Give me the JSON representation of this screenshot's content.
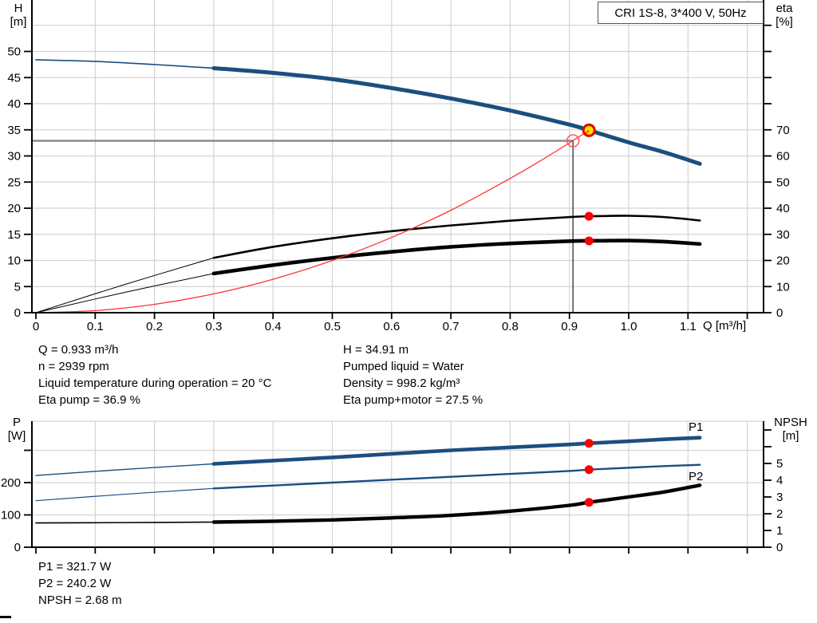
{
  "title_box": {
    "label": "CRI 1S-8, 3*400 V, 50Hz"
  },
  "info_top": {
    "left": [
      "Q = 0.933 m³/h",
      "n = 2939 rpm",
      "Liquid temperature during operation = 20 °C",
      "Eta pump = 36.9 %"
    ],
    "right": [
      "H = 34.91 m",
      "Pumped liquid = Water",
      "Density = 998.2 kg/m³",
      "Eta pump+motor = 27.5 %"
    ]
  },
  "info_bottom": [
    "P1 = 321.7 W",
    "P2 = 240.2 W",
    "NPSH = 2.68 m"
  ],
  "colors": {
    "curve_blue": "#1c4e80",
    "curve_label_blue": "#2e66ad",
    "red": "#ff0000",
    "system_red": "#ff3333",
    "yellow": "#ffe400",
    "grid": "#d4d4d4",
    "crosshair_h": "#8a8a8a",
    "crosshair_v": "#3c3c3c",
    "axis": "#000000"
  },
  "chart_data": [
    {
      "name": "hq-eta-chart",
      "type": "line",
      "title": "CRI 1S-8, 3*400 V, 50Hz",
      "xlabel": "Q [m³/h]",
      "ylabel_left": [
        "H",
        "[m]"
      ],
      "ylabel_right": [
        "eta",
        "[%]"
      ],
      "xlim": [
        0,
        1.23
      ],
      "ylim_left": [
        0,
        60
      ],
      "ylim_right": [
        0,
        120
      ],
      "grid": true,
      "x_ticks": [
        [
          0,
          "0"
        ],
        [
          0.1,
          "0.1"
        ],
        [
          0.2,
          "0.2"
        ],
        [
          0.3,
          "0.3"
        ],
        [
          0.4,
          "0.4"
        ],
        [
          0.5,
          "0.5"
        ],
        [
          0.6,
          "0.6"
        ],
        [
          0.7,
          "0.7"
        ],
        [
          0.8,
          "0.8"
        ],
        [
          0.9,
          "0.9"
        ],
        [
          1.0,
          "1.0"
        ],
        [
          1.1,
          "1.1"
        ],
        [
          1.2,
          ""
        ]
      ],
      "left_ticks": [
        [
          0,
          "0"
        ],
        [
          5,
          "5"
        ],
        [
          10,
          "10"
        ],
        [
          15,
          "15"
        ],
        [
          20,
          "20"
        ],
        [
          25,
          "25"
        ],
        [
          30,
          "30"
        ],
        [
          35,
          "35"
        ],
        [
          40,
          "40"
        ],
        [
          45,
          "45"
        ],
        [
          50,
          "50"
        ]
      ],
      "right_ticks": [
        [
          0,
          "0"
        ],
        [
          10,
          "10"
        ],
        [
          20,
          "20"
        ],
        [
          30,
          "30"
        ],
        [
          40,
          "40"
        ],
        [
          50,
          "50"
        ],
        [
          60,
          "60"
        ],
        [
          70,
          "70"
        ],
        [
          80,
          ""
        ],
        [
          90,
          ""
        ],
        [
          100,
          ""
        ],
        [
          110,
          ""
        ]
      ],
      "h_gridlines": [
        5,
        10,
        15,
        20,
        25,
        30,
        35,
        40,
        45,
        50,
        55
      ],
      "crosshair": {
        "q": 0.906,
        "v": 32.9
      },
      "series": [
        {
          "name": "eta-pump",
          "axis": "right",
          "color": "#000000",
          "segments": [
            {
              "width": 1.0,
              "points": [
                [
                  0,
                  0
                ],
                [
                  0.15,
                  10.8
                ],
                [
                  0.3,
                  21
                ]
              ]
            },
            {
              "width": 2.6,
              "points": [
                [
                  0.3,
                  21
                ],
                [
                  0.4,
                  25.2
                ],
                [
                  0.5,
                  28.5
                ],
                [
                  0.6,
                  31.2
                ],
                [
                  0.7,
                  33.4
                ],
                [
                  0.8,
                  35.2
                ],
                [
                  0.9,
                  36.6
                ],
                [
                  0.933,
                  36.9
                ],
                [
                  1.0,
                  37.1
                ],
                [
                  1.06,
                  36.6
                ],
                [
                  1.12,
                  35.3
                ]
              ]
            }
          ]
        },
        {
          "name": "eta-pump-motor",
          "axis": "right",
          "color": "#000000",
          "segments": [
            {
              "width": 1.0,
              "points": [
                [
                  0,
                  0
                ],
                [
                  0.15,
                  7.8
                ],
                [
                  0.3,
                  15
                ]
              ]
            },
            {
              "width": 4.6,
              "points": [
                [
                  0.3,
                  15
                ],
                [
                  0.4,
                  18.2
                ],
                [
                  0.5,
                  21.0
                ],
                [
                  0.6,
                  23.3
                ],
                [
                  0.7,
                  25.2
                ],
                [
                  0.8,
                  26.5
                ],
                [
                  0.9,
                  27.4
                ],
                [
                  0.933,
                  27.5
                ],
                [
                  1.0,
                  27.6
                ],
                [
                  1.06,
                  27.2
                ],
                [
                  1.12,
                  26.3
                ]
              ]
            }
          ]
        },
        {
          "name": "system-curve",
          "axis": "left",
          "color": "#ff3333",
          "segments": [
            {
              "width": 1.3,
              "points": [
                [
                  0,
                  0
                ],
                [
                  0.1,
                  0.4
                ],
                [
                  0.2,
                  1.6
                ],
                [
                  0.3,
                  3.6
                ],
                [
                  0.4,
                  6.4
                ],
                [
                  0.5,
                  10.0
                ],
                [
                  0.6,
                  14.4
                ],
                [
                  0.7,
                  19.6
                ],
                [
                  0.8,
                  25.7
                ],
                [
                  0.85,
                  29.0
                ],
                [
                  0.9,
                  32.5
                ],
                [
                  0.933,
                  34.91
                ]
              ]
            }
          ]
        },
        {
          "name": "head",
          "axis": "left",
          "color": "#1c4e80",
          "segments": [
            {
              "width": 1.6,
              "points": [
                [
                  0,
                  48.4
                ],
                [
                  0.1,
                  48.1
                ],
                [
                  0.2,
                  47.5
                ],
                [
                  0.3,
                  46.8
                ]
              ]
            },
            {
              "width": 5.0,
              "points": [
                [
                  0.3,
                  46.8
                ],
                [
                  0.4,
                  45.9
                ],
                [
                  0.5,
                  44.7
                ],
                [
                  0.6,
                  43.0
                ],
                [
                  0.7,
                  41.0
                ],
                [
                  0.8,
                  38.7
                ],
                [
                  0.9,
                  36.0
                ],
                [
                  0.933,
                  34.91
                ],
                [
                  1.0,
                  32.6
                ],
                [
                  1.06,
                  30.7
                ],
                [
                  1.12,
                  28.5
                ]
              ]
            }
          ]
        }
      ],
      "markers": [
        {
          "name": "system-ref-point",
          "style": "open-circle",
          "axis": "left",
          "q": 0.906,
          "v": 32.9
        },
        {
          "name": "eta-pump-point",
          "style": "red-dot",
          "axis": "right",
          "q": 0.933,
          "v": 36.9
        },
        {
          "name": "eta-pump-motor-point",
          "style": "red-dot",
          "axis": "right",
          "q": 0.933,
          "v": 27.5
        },
        {
          "name": "duty-point",
          "style": "yellow-dot",
          "axis": "left",
          "q": 0.933,
          "v": 34.91
        }
      ]
    },
    {
      "name": "power-npsh-chart",
      "type": "line",
      "title": "",
      "xlabel": "",
      "ylabel_left": [
        "P",
        "[W]"
      ],
      "ylabel_right": [
        "NPSH",
        "[m]"
      ],
      "xlim": [
        0,
        1.23
      ],
      "ylim_left": [
        0,
        390
      ],
      "ylim_right": [
        0,
        7.5
      ],
      "grid": true,
      "x_ticks": [
        [
          0,
          ""
        ],
        [
          0.1,
          ""
        ],
        [
          0.2,
          ""
        ],
        [
          0.3,
          ""
        ],
        [
          0.4,
          ""
        ],
        [
          0.5,
          ""
        ],
        [
          0.6,
          ""
        ],
        [
          0.7,
          ""
        ],
        [
          0.8,
          ""
        ],
        [
          0.9,
          ""
        ],
        [
          1.0,
          ""
        ],
        [
          1.1,
          ""
        ],
        [
          1.2,
          ""
        ]
      ],
      "left_ticks": [
        [
          0,
          "0"
        ],
        [
          100,
          "100"
        ],
        [
          200,
          "200"
        ],
        [
          300,
          ""
        ]
      ],
      "right_ticks": [
        [
          0,
          "0"
        ],
        [
          1,
          "1"
        ],
        [
          2,
          "2"
        ],
        [
          3,
          "3"
        ],
        [
          4,
          "4"
        ],
        [
          5,
          "5"
        ],
        [
          6,
          ""
        ],
        [
          7,
          ""
        ]
      ],
      "h_gridlines": [
        100,
        200,
        300
      ],
      "series": [
        {
          "name": "p1",
          "axis": "left",
          "color": "#1c4e80",
          "label": "P1",
          "segments": [
            {
              "width": 1.4,
              "points": [
                [
                  0,
                  222
                ],
                [
                  0.15,
                  241
                ],
                [
                  0.3,
                  258
                ]
              ]
            },
            {
              "width": 4.6,
              "points": [
                [
                  0.3,
                  258
                ],
                [
                  0.4,
                  268
                ],
                [
                  0.5,
                  278
                ],
                [
                  0.6,
                  289
                ],
                [
                  0.7,
                  300
                ],
                [
                  0.8,
                  309
                ],
                [
                  0.9,
                  318
                ],
                [
                  0.933,
                  321.7
                ],
                [
                  1.0,
                  328
                ],
                [
                  1.06,
                  334
                ],
                [
                  1.12,
                  339
                ]
              ]
            }
          ]
        },
        {
          "name": "p2",
          "axis": "left",
          "color": "#1c4e80",
          "label": "P2",
          "segments": [
            {
              "width": 1.2,
              "points": [
                [
                  0,
                  144
                ],
                [
                  0.15,
                  164
                ],
                [
                  0.3,
                  182
                ]
              ]
            },
            {
              "width": 2.4,
              "points": [
                [
                  0.3,
                  182
                ],
                [
                  0.4,
                  191
                ],
                [
                  0.5,
                  200
                ],
                [
                  0.6,
                  209
                ],
                [
                  0.7,
                  218
                ],
                [
                  0.8,
                  227
                ],
                [
                  0.9,
                  236
                ],
                [
                  0.933,
                  240.2
                ],
                [
                  1.0,
                  246
                ],
                [
                  1.06,
                  251
                ],
                [
                  1.12,
                  255
                ]
              ]
            }
          ]
        },
        {
          "name": "npsh",
          "axis": "right",
          "color": "#000000",
          "segments": [
            {
              "width": 1.6,
              "points": [
                [
                  0,
                  1.45
                ],
                [
                  0.15,
                  1.47
                ],
                [
                  0.3,
                  1.5
                ]
              ]
            },
            {
              "width": 4.4,
              "points": [
                [
                  0.3,
                  1.5
                ],
                [
                  0.4,
                  1.55
                ],
                [
                  0.5,
                  1.63
                ],
                [
                  0.6,
                  1.75
                ],
                [
                  0.7,
                  1.9
                ],
                [
                  0.8,
                  2.15
                ],
                [
                  0.9,
                  2.5
                ],
                [
                  0.933,
                  2.68
                ],
                [
                  1.0,
                  3.0
                ],
                [
                  1.06,
                  3.3
                ],
                [
                  1.12,
                  3.7
                ]
              ]
            }
          ]
        }
      ],
      "markers": [
        {
          "name": "p1-point",
          "style": "red-dot",
          "axis": "left",
          "q": 0.933,
          "v": 321.7
        },
        {
          "name": "p2-point",
          "style": "red-dot",
          "axis": "left",
          "q": 0.933,
          "v": 240.2
        },
        {
          "name": "npsh-point",
          "style": "red-dot",
          "axis": "right",
          "q": 0.933,
          "v": 2.68
        }
      ]
    }
  ]
}
